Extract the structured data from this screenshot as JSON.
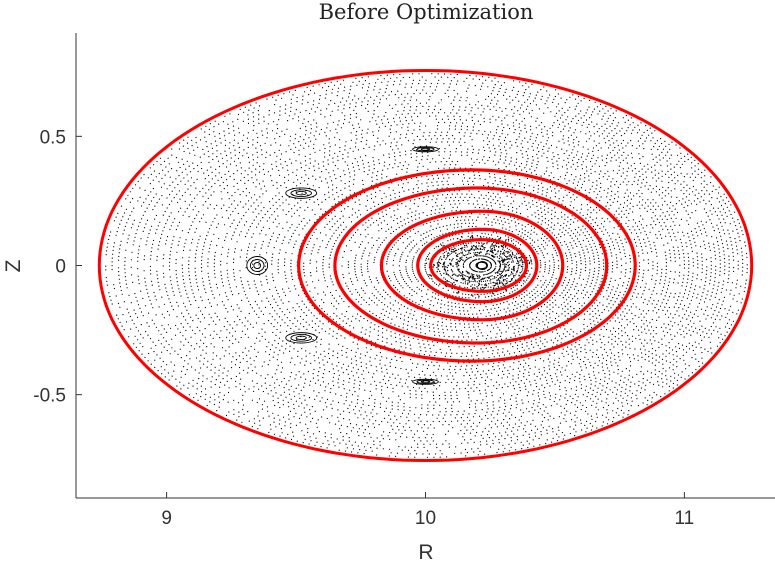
{
  "chart_data": {
    "type": "scatter",
    "title": "Before Optimization",
    "xlabel": "R",
    "ylabel": "Z",
    "xlim": [
      8.65,
      11.35
    ],
    "ylim": [
      -0.9,
      0.9
    ],
    "xticks": [
      9,
      10,
      11
    ],
    "xtick_labels": [
      "9",
      "10",
      "11"
    ],
    "yticks": [
      0.5,
      0,
      -0.5
    ],
    "ytick_labels": [
      "0.5",
      "0",
      "-0.5"
    ],
    "grid": false,
    "legend": "none",
    "colors": {
      "surfaces": "#ff0000",
      "poincare_points": "#000000"
    },
    "flux_surfaces": [
      {
        "r0": 10.0,
        "z0": 0.0,
        "a_in": 1.26,
        "a_out": 1.26,
        "b_up": 0.755,
        "b_down": 0.755
      },
      {
        "r0": 10.18,
        "z0": 0.0,
        "a_in": 0.67,
        "a_out": 0.63,
        "b_up": 0.37,
        "b_down": 0.37
      },
      {
        "r0": 10.2,
        "z0": 0.0,
        "a_in": 0.55,
        "a_out": 0.5,
        "b_up": 0.3,
        "b_down": 0.3
      },
      {
        "r0": 10.22,
        "z0": 0.0,
        "a_in": 0.39,
        "a_out": 0.31,
        "b_up": 0.21,
        "b_down": 0.21
      },
      {
        "r0": 10.22,
        "z0": 0.0,
        "a_in": 0.25,
        "a_out": 0.21,
        "b_up": 0.14,
        "b_down": 0.14
      },
      {
        "r0": 10.22,
        "z0": 0.0,
        "a_in": 0.2,
        "a_out": 0.17,
        "b_up": 0.1,
        "b_down": 0.1
      }
    ],
    "magnetic_axis": {
      "r": 10.22,
      "z": 0.0
    },
    "islands": [
      {
        "r": 9.35,
        "z": 0.0,
        "width": 0.08,
        "height": 0.07
      },
      {
        "r": 9.52,
        "z": 0.28,
        "width": 0.12,
        "height": 0.04
      },
      {
        "r": 9.52,
        "z": -0.28,
        "width": 0.12,
        "height": 0.04
      },
      {
        "r": 10.0,
        "z": 0.45,
        "width": 0.1,
        "height": 0.02
      },
      {
        "r": 10.0,
        "z": -0.45,
        "width": 0.1,
        "height": 0.02
      }
    ]
  }
}
